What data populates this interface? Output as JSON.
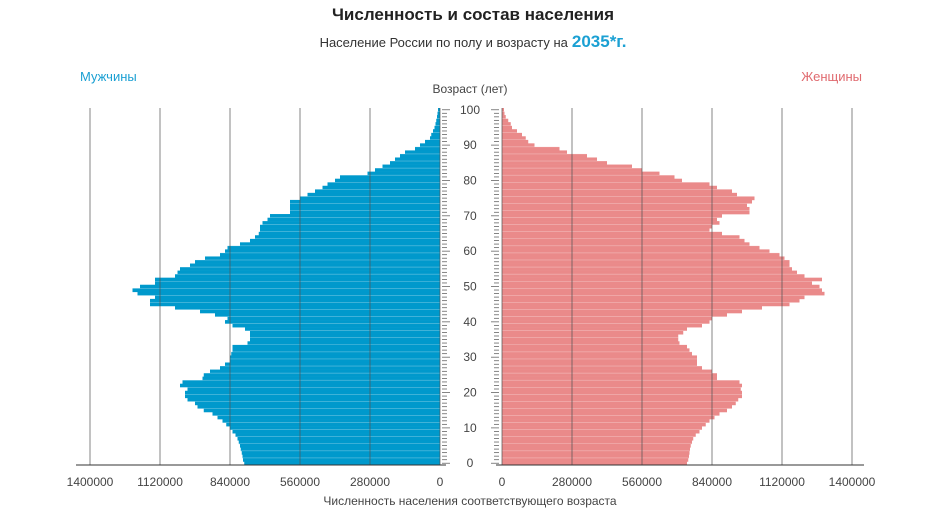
{
  "title": "Численность и состав населения",
  "subtitle": "Население России по полу и возрасту на",
  "year": "2035*г.",
  "legend": {
    "male": "Мужчины",
    "female": "Женщины"
  },
  "colors": {
    "male": "#0099cc",
    "female": "#ea8a8a",
    "accent": "#1ba0d3"
  },
  "chart_data": {
    "type": "bar",
    "orientation": "horizontal-population-pyramid",
    "title": "Численность и состав населения",
    "subtitle": "Население России по полу и возрасту на 2035*г.",
    "ylabel": "Возраст (лет)",
    "xlabel": "Численность населения соответствующего возраста",
    "age_range": [
      0,
      100
    ],
    "age_ticks": [
      0,
      10,
      20,
      30,
      40,
      50,
      60,
      70,
      80,
      90,
      100
    ],
    "xlim": [
      0,
      1400000
    ],
    "male_ticks": [
      "1400000",
      "1120000",
      "840000",
      "560000",
      "280000",
      "0"
    ],
    "female_ticks": [
      "0",
      "280000",
      "560000",
      "840000",
      "1120000",
      "1400000"
    ],
    "series": [
      {
        "name": "Мужчины",
        "values": [
          783000,
          788000,
          790000,
          793000,
          797000,
          800000,
          805000,
          810000,
          818000,
          830000,
          840000,
          855000,
          870000,
          890000,
          910000,
          945000,
          970000,
          980000,
          1010000,
          1020000,
          1020000,
          1010000,
          1040000,
          1030000,
          950000,
          945000,
          920000,
          880000,
          860000,
          840000,
          840000,
          835000,
          830000,
          830000,
          770000,
          760000,
          760000,
          760000,
          780000,
          830000,
          860000,
          850000,
          900000,
          960000,
          1060000,
          1160000,
          1160000,
          1140000,
          1210000,
          1230000,
          1200000,
          1140000,
          1140000,
          1060000,
          1050000,
          1040000,
          1000000,
          980000,
          940000,
          880000,
          860000,
          850000,
          800000,
          760000,
          740000,
          725000,
          720000,
          720000,
          710000,
          690000,
          680000,
          600000,
          600000,
          600000,
          600000,
          560000,
          530000,
          500000,
          470000,
          450000,
          420000,
          400000,
          290000,
          260000,
          230000,
          200000,
          180000,
          160000,
          140000,
          100000,
          80000,
          60000,
          40000,
          35000,
          28000,
          22000,
          18000,
          15000,
          12000,
          10000,
          8000
        ]
      },
      {
        "name": "Женщины",
        "values": [
          740000,
          745000,
          748000,
          750000,
          752000,
          755000,
          760000,
          765000,
          775000,
          790000,
          800000,
          815000,
          830000,
          850000,
          870000,
          900000,
          920000,
          935000,
          945000,
          960000,
          960000,
          955000,
          960000,
          950000,
          860000,
          860000,
          840000,
          800000,
          780000,
          780000,
          780000,
          760000,
          750000,
          740000,
          710000,
          705000,
          705000,
          725000,
          740000,
          800000,
          830000,
          840000,
          900000,
          960000,
          1040000,
          1150000,
          1190000,
          1210000,
          1290000,
          1280000,
          1270000,
          1240000,
          1280000,
          1210000,
          1180000,
          1160000,
          1150000,
          1150000,
          1130000,
          1110000,
          1070000,
          1030000,
          990000,
          970000,
          950000,
          880000,
          830000,
          840000,
          870000,
          860000,
          880000,
          990000,
          990000,
          980000,
          1000000,
          1010000,
          940000,
          920000,
          860000,
          830000,
          720000,
          690000,
          630000,
          560000,
          520000,
          420000,
          380000,
          340000,
          260000,
          230000,
          130000,
          105000,
          95000,
          80000,
          60000,
          40000,
          35000,
          25000,
          15000,
          10000,
          8000
        ]
      }
    ],
    "grid": true
  }
}
